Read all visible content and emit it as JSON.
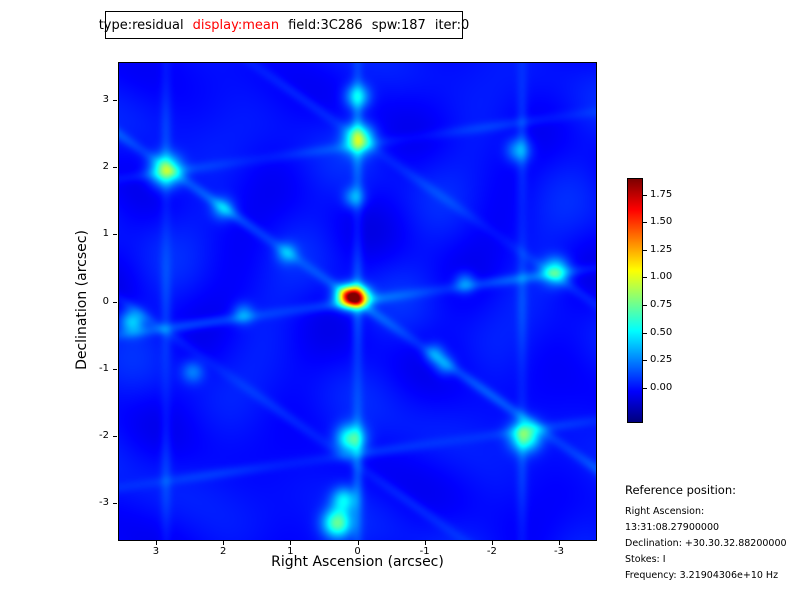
{
  "title_box": {
    "segments": [
      {
        "text": "type:residual",
        "color": "#000000"
      },
      {
        "text": "display:mean",
        "color": "#ff0000"
      },
      {
        "text": "field:3C286",
        "color": "#000000"
      },
      {
        "text": "spw:187",
        "color": "#000000"
      },
      {
        "text": "iter:0",
        "color": "#000000"
      }
    ]
  },
  "chart_data": {
    "type": "heatmap",
    "title": "type:residual display:mean field:3C286 spw:187 iter:0",
    "xlabel": "Right Ascension (arcsec)",
    "ylabel": "Declination (arcsec)",
    "x_ticks": [
      3,
      2,
      1,
      0,
      -1,
      -2,
      -3
    ],
    "y_ticks": [
      3,
      2,
      1,
      0,
      -1,
      -2,
      -3
    ],
    "x_range_arcsec": [
      3.55,
      -3.55
    ],
    "y_range_arcsec": [
      -3.55,
      3.55
    ],
    "colormap": "jet",
    "value_range": [
      -0.3,
      1.9
    ],
    "colorbar_ticks": [
      "1.75",
      "1.50",
      "1.25",
      "1.00",
      "0.75",
      "0.50",
      "0.25",
      "0.00"
    ],
    "legend_position": "right",
    "grid": false,
    "peak": {
      "u": -0.07,
      "v": 0.07,
      "amp": 1.9,
      "sigma_x": 0.15,
      "sigma_y": 0.11
    },
    "background": {
      "base": 0.0,
      "ripple_amp": 0.05
    },
    "stripes": [
      {
        "angle_deg": 90,
        "offset": 0,
        "width": 0.085,
        "amp": 0.16
      },
      {
        "angle_deg": 145,
        "offset": 0,
        "width": 0.085,
        "amp": 0.16
      },
      {
        "angle_deg": 8,
        "offset": 0,
        "width": 0.085,
        "amp": 0.16
      },
      {
        "angle_deg": 90,
        "offset": 2.85,
        "width": 0.085,
        "amp": 0.1
      },
      {
        "angle_deg": 90,
        "offset": -2.45,
        "width": 0.085,
        "amp": 0.1
      },
      {
        "angle_deg": 8,
        "offset": 2.3,
        "width": 0.085,
        "amp": 0.09
      },
      {
        "angle_deg": 8,
        "offset": -2.25,
        "width": 0.085,
        "amp": 0.09
      },
      {
        "angle_deg": 145,
        "offset": 2.0,
        "width": 0.085,
        "amp": 0.08
      },
      {
        "angle_deg": 145,
        "offset": -2.0,
        "width": 0.085,
        "amp": 0.08
      }
    ],
    "blobs": [
      {
        "u": 0.0,
        "v": 3.05,
        "amp": 0.45,
        "sigma": 0.13
      },
      {
        "u": 0.02,
        "v": 2.42,
        "amp": 0.75,
        "sigma": 0.15
      },
      {
        "u": -0.05,
        "v": 1.55,
        "amp": 0.3,
        "sigma": 0.11
      },
      {
        "u": -1.05,
        "v": 0.72,
        "amp": 0.28,
        "sigma": 0.11
      },
      {
        "u": -2.0,
        "v": 1.38,
        "amp": 0.3,
        "sigma": 0.12
      },
      {
        "u": -2.85,
        "v": 1.95,
        "amp": 0.75,
        "sigma": 0.16
      },
      {
        "u": 2.4,
        "v": 2.25,
        "amp": 0.33,
        "sigma": 0.13
      },
      {
        "u": 1.6,
        "v": 0.28,
        "amp": 0.28,
        "sigma": 0.11
      },
      {
        "u": 2.95,
        "v": 0.45,
        "amp": 0.55,
        "sigma": 0.14
      },
      {
        "u": -3.35,
        "v": -0.3,
        "amp": 0.4,
        "sigma": 0.13
      },
      {
        "u": -1.7,
        "v": -0.18,
        "amp": 0.26,
        "sigma": 0.11
      },
      {
        "u": 1.15,
        "v": -0.78,
        "amp": 0.28,
        "sigma": 0.11
      },
      {
        "u": 2.5,
        "v": -2.0,
        "amp": 0.7,
        "sigma": 0.16
      },
      {
        "u": -0.1,
        "v": -2.05,
        "amp": 0.65,
        "sigma": 0.15
      },
      {
        "u": -0.2,
        "v": -2.95,
        "amp": 0.45,
        "sigma": 0.13
      },
      {
        "u": -0.3,
        "v": -3.3,
        "amp": 0.7,
        "sigma": 0.15
      },
      {
        "u": -2.45,
        "v": -1.05,
        "amp": 0.25,
        "sigma": 0.12
      },
      {
        "u": 1.3,
        "v": -0.95,
        "amp": 0.25,
        "sigma": 0.11
      }
    ]
  },
  "reference": {
    "heading": "Reference position:",
    "lines": [
      "Right Ascension: 13:31:08.27900000",
      "Declination: +30.30.32.88200000",
      "Stokes: I",
      "Frequency: 3.21904306e+10 Hz"
    ]
  }
}
